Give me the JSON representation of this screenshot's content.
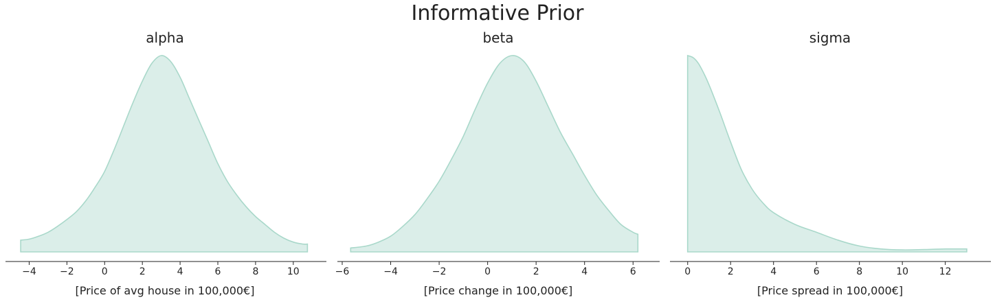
{
  "figure": {
    "title": "Informative Prior",
    "fill_color": "#dbeee9",
    "line_color": "#a9d8ca",
    "axis_color": "#222222"
  },
  "chart_data": [
    {
      "type": "area",
      "title": "alpha",
      "xlabel": "[Price of avg house in 100,000€]",
      "ylabel": "",
      "xlim": [
        -5.0,
        11.5
      ],
      "ylim": [
        0,
        1.0
      ],
      "xticks": [
        -4,
        -2,
        0,
        2,
        4,
        6,
        8,
        10
      ],
      "xtick_labels": [
        "−4",
        "−2",
        "0",
        "2",
        "4",
        "6",
        "8",
        "10"
      ],
      "grid": false,
      "x": [
        -4.45,
        -4.0,
        -3.5,
        -3.0,
        -2.5,
        -2.0,
        -1.5,
        -1.0,
        -0.5,
        0.0,
        0.5,
        1.0,
        1.5,
        2.0,
        2.5,
        3.0,
        3.5,
        4.0,
        4.5,
        5.0,
        5.5,
        6.0,
        6.5,
        7.0,
        7.5,
        8.0,
        8.5,
        9.0,
        9.5,
        10.0,
        10.5,
        10.75
      ],
      "y": [
        0.06,
        0.065,
        0.08,
        0.1,
        0.13,
        0.165,
        0.205,
        0.26,
        0.33,
        0.41,
        0.52,
        0.64,
        0.76,
        0.87,
        0.96,
        1.0,
        0.97,
        0.89,
        0.78,
        0.67,
        0.56,
        0.45,
        0.36,
        0.29,
        0.23,
        0.18,
        0.14,
        0.1,
        0.07,
        0.05,
        0.04,
        0.04
      ]
    },
    {
      "type": "area",
      "title": "beta",
      "xlabel": "[Price change in 100,000€]",
      "ylabel": "",
      "xlim": [
        -6.0,
        6.9
      ],
      "ylim": [
        0,
        1.0
      ],
      "xticks": [
        -6,
        -4,
        -2,
        0,
        2,
        4,
        6
      ],
      "xtick_labels": [
        "−6",
        "−4",
        "−2",
        "0",
        "2",
        "4",
        "6"
      ],
      "grid": false,
      "x": [
        -5.65,
        -5.0,
        -4.5,
        -4.0,
        -3.5,
        -3.0,
        -2.5,
        -2.0,
        -1.5,
        -1.0,
        -0.5,
        0.0,
        0.5,
        1.0,
        1.5,
        2.0,
        2.5,
        3.0,
        3.5,
        4.0,
        4.5,
        5.0,
        5.5,
        6.0,
        6.2
      ],
      "y": [
        0.02,
        0.03,
        0.05,
        0.08,
        0.13,
        0.19,
        0.27,
        0.36,
        0.47,
        0.59,
        0.73,
        0.86,
        0.96,
        1.0,
        0.97,
        0.87,
        0.74,
        0.61,
        0.5,
        0.39,
        0.29,
        0.21,
        0.14,
        0.1,
        0.09
      ]
    },
    {
      "type": "area",
      "title": "sigma",
      "xlabel": "[Price spread in 100,000€]",
      "ylabel": "",
      "xlim": [
        -0.6,
        13.9
      ],
      "ylim": [
        0,
        1.0
      ],
      "xticks": [
        0,
        2,
        4,
        6,
        8,
        10,
        12
      ],
      "xtick_labels": [
        "0",
        "2",
        "4",
        "6",
        "8",
        "10",
        "12"
      ],
      "grid": false,
      "x": [
        0.0,
        0.25,
        0.5,
        0.75,
        1.0,
        1.5,
        2.0,
        2.5,
        3.0,
        3.5,
        4.0,
        5.0,
        6.0,
        7.0,
        8.0,
        9.0,
        10.0,
        11.0,
        12.0,
        13.0
      ],
      "y": [
        1.0,
        0.99,
        0.96,
        0.91,
        0.85,
        0.71,
        0.56,
        0.42,
        0.32,
        0.25,
        0.2,
        0.14,
        0.1,
        0.06,
        0.03,
        0.015,
        0.01,
        0.012,
        0.015,
        0.015
      ]
    }
  ]
}
